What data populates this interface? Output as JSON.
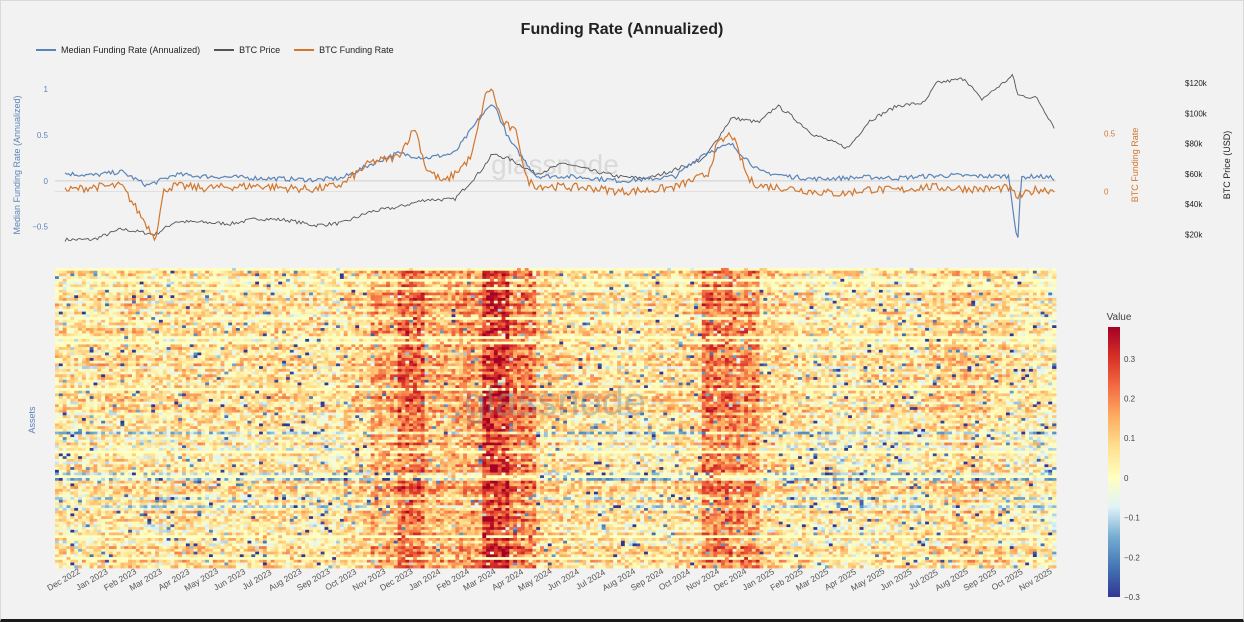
{
  "chart_data": [
    {
      "type": "line",
      "title": "Funding Rate (Annualized)",
      "ylabel_left": "Median Funding Rate (Annualized)",
      "ylabel_right1": "BTC Funding Rate",
      "ylabel_right2": "BTC Price (USD)",
      "legend": {
        "placement": "top-left"
      },
      "left_ticks": [
        "1",
        "0.5",
        "0",
        "−0.5"
      ],
      "right1_ticks": [
        "0.5",
        "0"
      ],
      "right2_ticks": [
        "$120k",
        "$100k",
        "$80k",
        "$60k",
        "$40k",
        "$20k"
      ],
      "ylim_left": [
        -0.7,
        1.1
      ],
      "ylim_right_funding": [
        -0.46,
        0.96
      ],
      "ylim_right_price": [
        13000,
        122000
      ],
      "series": [
        {
          "name": "Median Funding Rate (Annualized)",
          "color": "#5b84b8",
          "points": [
            [
              "2022-12-01",
              0.08
            ],
            [
              "2023-01-01",
              0.06
            ],
            [
              "2023-02-01",
              0.1
            ],
            [
              "2023-03-01",
              -0.05
            ],
            [
              "2023-03-20",
              0.02
            ],
            [
              "2023-04-01",
              0.07
            ],
            [
              "2023-05-01",
              0.05
            ],
            [
              "2023-06-01",
              0.04
            ],
            [
              "2023-07-01",
              0.03
            ],
            [
              "2023-08-01",
              0.02
            ],
            [
              "2023-09-01",
              0.01
            ],
            [
              "2023-10-01",
              0.03
            ],
            [
              "2023-11-01",
              0.18
            ],
            [
              "2023-12-01",
              0.3
            ],
            [
              "2024-01-01",
              0.25
            ],
            [
              "2024-02-01",
              0.3
            ],
            [
              "2024-03-01",
              0.7
            ],
            [
              "2024-03-15",
              0.85
            ],
            [
              "2024-04-01",
              0.45
            ],
            [
              "2024-05-01",
              0.05
            ],
            [
              "2024-06-01",
              0.05
            ],
            [
              "2024-07-01",
              0.03
            ],
            [
              "2024-08-01",
              0.0
            ],
            [
              "2024-09-01",
              0.02
            ],
            [
              "2024-10-01",
              0.05
            ],
            [
              "2024-11-01",
              0.3
            ],
            [
              "2024-12-01",
              0.4
            ],
            [
              "2025-01-01",
              0.1
            ],
            [
              "2025-02-01",
              0.05
            ],
            [
              "2025-03-01",
              0.02
            ],
            [
              "2025-04-01",
              0.03
            ],
            [
              "2025-05-01",
              0.04
            ],
            [
              "2025-06-01",
              0.03
            ],
            [
              "2025-07-01",
              0.05
            ],
            [
              "2025-08-01",
              0.06
            ],
            [
              "2025-09-01",
              0.05
            ],
            [
              "2025-10-01",
              0.05
            ],
            [
              "2025-10-11",
              -0.68
            ],
            [
              "2025-10-15",
              0.04
            ],
            [
              "2025-11-01",
              0.05
            ],
            [
              "2025-11-20",
              0.03
            ]
          ]
        },
        {
          "name": "BTC Price",
          "color": "#555555",
          "points": [
            [
              "2022-12-01",
              16500
            ],
            [
              "2023-01-01",
              16600
            ],
            [
              "2023-02-01",
              23500
            ],
            [
              "2023-03-10",
              20000
            ],
            [
              "2023-04-01",
              28500
            ],
            [
              "2023-05-01",
              28000
            ],
            [
              "2023-06-01",
              27000
            ],
            [
              "2023-07-01",
              30500
            ],
            [
              "2023-08-01",
              29500
            ],
            [
              "2023-09-01",
              26000
            ],
            [
              "2023-10-01",
              27500
            ],
            [
              "2023-11-01",
              35000
            ],
            [
              "2023-12-01",
              38000
            ],
            [
              "2024-01-01",
              43000
            ],
            [
              "2024-02-01",
              43000
            ],
            [
              "2024-03-01",
              62000
            ],
            [
              "2024-03-14",
              73000
            ],
            [
              "2024-04-01",
              70000
            ],
            [
              "2024-05-01",
              60000
            ],
            [
              "2024-06-01",
              67000
            ],
            [
              "2024-07-01",
              62000
            ],
            [
              "2024-08-01",
              58000
            ],
            [
              "2024-09-01",
              57000
            ],
            [
              "2024-10-01",
              63000
            ],
            [
              "2024-11-01",
              70000
            ],
            [
              "2024-12-01",
              97000
            ],
            [
              "2025-01-01",
              94000
            ],
            [
              "2025-01-20",
              105000
            ],
            [
              "2025-02-01",
              100000
            ],
            [
              "2025-03-01",
              86000
            ],
            [
              "2025-04-08",
              77000
            ],
            [
              "2025-05-01",
              95000
            ],
            [
              "2025-06-01",
              105000
            ],
            [
              "2025-07-01",
              107000
            ],
            [
              "2025-07-14",
              120000
            ],
            [
              "2025-08-14",
              123000
            ],
            [
              "2025-09-01",
              109000
            ],
            [
              "2025-10-06",
              125000
            ],
            [
              "2025-10-11",
              112000
            ],
            [
              "2025-11-01",
              110000
            ],
            [
              "2025-11-20",
              91000
            ]
          ]
        },
        {
          "name": "BTC Funding Rate",
          "color": "#d2762d",
          "points": [
            [
              "2022-12-01",
              0.01
            ],
            [
              "2023-01-01",
              0.04
            ],
            [
              "2023-02-01",
              0.05
            ],
            [
              "2023-03-10",
              -0.4
            ],
            [
              "2023-03-20",
              0.02
            ],
            [
              "2023-04-01",
              0.05
            ],
            [
              "2023-05-01",
              0.03
            ],
            [
              "2023-06-01",
              0.04
            ],
            [
              "2023-07-01",
              0.05
            ],
            [
              "2023-08-01",
              0.03
            ],
            [
              "2023-09-01",
              0.02
            ],
            [
              "2023-10-01",
              0.06
            ],
            [
              "2023-11-01",
              0.25
            ],
            [
              "2023-12-01",
              0.3
            ],
            [
              "2023-12-20",
              0.55
            ],
            [
              "2024-01-01",
              0.2
            ],
            [
              "2024-01-20",
              0.08
            ],
            [
              "2024-02-01",
              0.15
            ],
            [
              "2024-02-20",
              0.3
            ],
            [
              "2024-03-05",
              0.8
            ],
            [
              "2024-03-12",
              0.9
            ],
            [
              "2024-03-25",
              0.6
            ],
            [
              "2024-04-10",
              0.5
            ],
            [
              "2024-04-20",
              0.1
            ],
            [
              "2024-05-01",
              0.05
            ],
            [
              "2024-06-01",
              0.04
            ],
            [
              "2024-07-01",
              0.03
            ],
            [
              "2024-08-01",
              0.0
            ],
            [
              "2024-09-01",
              0.01
            ],
            [
              "2024-10-01",
              0.04
            ],
            [
              "2024-11-05",
              0.15
            ],
            [
              "2024-11-15",
              0.4
            ],
            [
              "2024-12-01",
              0.5
            ],
            [
              "2024-12-20",
              0.1
            ],
            [
              "2025-01-01",
              0.05
            ],
            [
              "2025-02-01",
              0.03
            ],
            [
              "2025-03-01",
              0.0
            ],
            [
              "2025-04-01",
              -0.02
            ],
            [
              "2025-05-01",
              0.02
            ],
            [
              "2025-06-01",
              0.01
            ],
            [
              "2025-07-01",
              0.04
            ],
            [
              "2025-08-01",
              0.03
            ],
            [
              "2025-09-01",
              0.02
            ],
            [
              "2025-10-01",
              0.03
            ],
            [
              "2025-10-11",
              -0.05
            ],
            [
              "2025-11-01",
              0.02
            ],
            [
              "2025-11-20",
              0.01
            ]
          ]
        }
      ]
    },
    {
      "type": "heatmap",
      "ylabel": "Assets",
      "colorbar_title": "Value",
      "colorbar_ticks": [
        "0.3",
        "0.2",
        "0.1",
        "0",
        "−0.1",
        "−0.2",
        "−0.3"
      ],
      "zlim": [
        -0.3,
        0.38
      ],
      "colorscale": [
        "#313695",
        "#4575b4",
        "#74add1",
        "#e0f3f8",
        "#ffffbf",
        "#fee090",
        "#fdae61",
        "#f46d43",
        "#d73027",
        "#a50026"
      ],
      "xlabels": [
        "Dec 2022",
        "Jan 2023",
        "Feb 2023",
        "Mar 2023",
        "Apr 2023",
        "May 2023",
        "Jun 2023",
        "Jul 2023",
        "Aug 2023",
        "Sep 2023",
        "Oct 2023",
        "Nov 2023",
        "Dec 2023",
        "Jan 2024",
        "Feb 2024",
        "Mar 2024",
        "Apr 2024",
        "May 2024",
        "Jun 2024",
        "Jul 2024",
        "Aug 2024",
        "Sep 2024",
        "Oct 2024",
        "Nov 2024",
        "Dec 2024",
        "Jan 2025",
        "Feb 2025",
        "Mar 2025",
        "Apr 2025",
        "May 2025",
        "Jun 2025",
        "Jul 2025",
        "Aug 2025",
        "Sep 2025",
        "Oct 2025",
        "Nov 2025"
      ],
      "monthly_typical_value": [
        0.04,
        0.05,
        0.06,
        0.04,
        0.06,
        0.05,
        0.05,
        0.06,
        0.05,
        0.04,
        0.07,
        0.14,
        0.22,
        0.13,
        0.15,
        0.3,
        0.2,
        0.08,
        0.06,
        0.05,
        0.04,
        0.05,
        0.07,
        0.2,
        0.18,
        0.07,
        0.05,
        0.03,
        0.03,
        0.05,
        0.04,
        0.07,
        0.08,
        0.06,
        0.03,
        0.02
      ]
    }
  ],
  "watermark": "glassnode"
}
